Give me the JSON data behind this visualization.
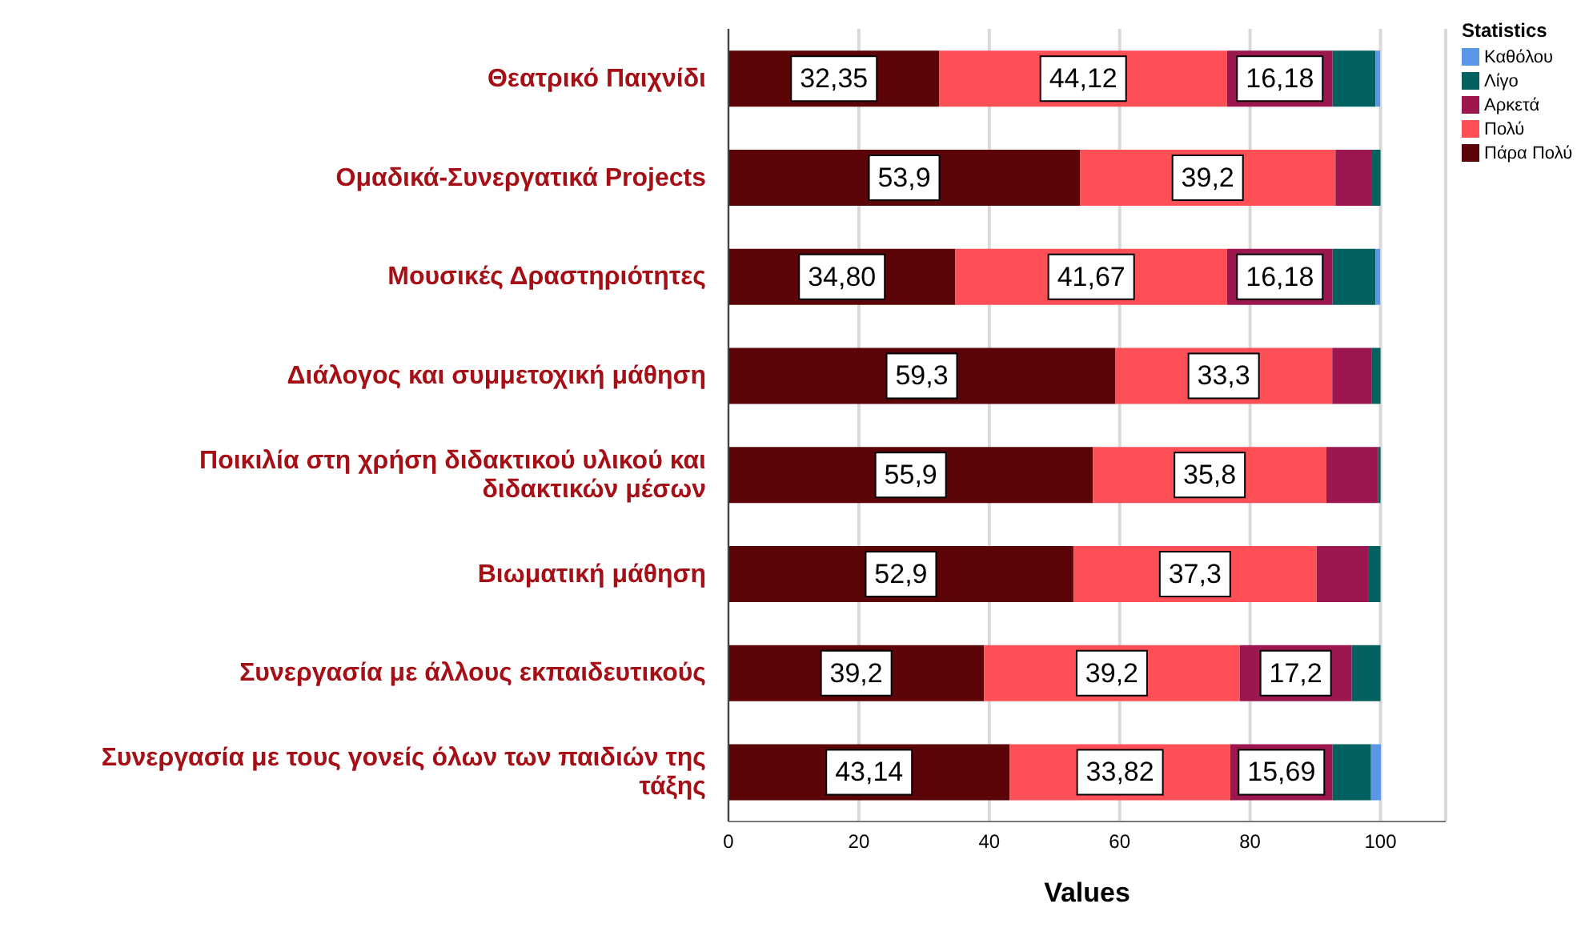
{
  "chart_data": {
    "type": "bar",
    "orientation": "horizontal",
    "stacked": true,
    "categories": [
      "Θεατρικό Παιχνίδι",
      "Ομαδικά-Συνεργατικά Projects",
      "Μουσικές Δραστηριότητες",
      "Διάλογος και συμμετοχική μάθηση",
      "Ποικιλία στη χρήση διδακτικού υλικού και διδακτικών μέσων",
      "Βιωματική μάθηση",
      "Συνεργασία με άλλους εκπαιδευτικούς",
      "Συνεργασία με τους γονείς όλων των παιδιών της τάξης"
    ],
    "series": [
      {
        "name": "Πάρα Πολύ",
        "color": "#5c0509",
        "values": [
          32.35,
          53.9,
          34.8,
          59.3,
          55.9,
          52.9,
          39.2,
          43.14
        ],
        "value_labels": [
          "32,35",
          "53,9",
          "34,80",
          "59,3",
          "55,9",
          "52,9",
          "39,2",
          "43,14"
        ]
      },
      {
        "name": "Πολύ",
        "color": "#fe4f57",
        "values": [
          44.12,
          39.2,
          41.67,
          33.3,
          35.8,
          37.3,
          39.2,
          33.82
        ],
        "value_labels": [
          "44,12",
          "39,2",
          "41,67",
          "33,3",
          "35,8",
          "37,3",
          "39,2",
          "33,82"
        ]
      },
      {
        "name": "Αρκετά",
        "color": "#9c1650",
        "values": [
          16.18,
          5.6,
          16.18,
          6.0,
          7.9,
          7.9,
          17.2,
          15.69
        ],
        "value_labels": [
          "16,18",
          null,
          "16,18",
          null,
          null,
          null,
          "17,2",
          "15,69"
        ]
      },
      {
        "name": "Λίγο",
        "color": "#036160",
        "values": [
          6.6,
          1.3,
          6.6,
          1.4,
          0.4,
          1.9,
          4.4,
          5.9
        ],
        "value_labels": [
          null,
          null,
          null,
          null,
          null,
          null,
          null,
          null
        ]
      },
      {
        "name": "Καθόλου",
        "color": "#5a97e6",
        "values": [
          0.7,
          0,
          0.7,
          0,
          0,
          0,
          0,
          1.5
        ],
        "value_labels": [
          null,
          null,
          null,
          null,
          null,
          null,
          null,
          null
        ]
      }
    ],
    "xlim": [
      0,
      110
    ],
    "xticks": [
      0,
      20,
      40,
      60,
      80,
      100
    ],
    "xlabel": "Values",
    "legend_title": "Statistics",
    "legend": "top right",
    "grid": "x"
  }
}
